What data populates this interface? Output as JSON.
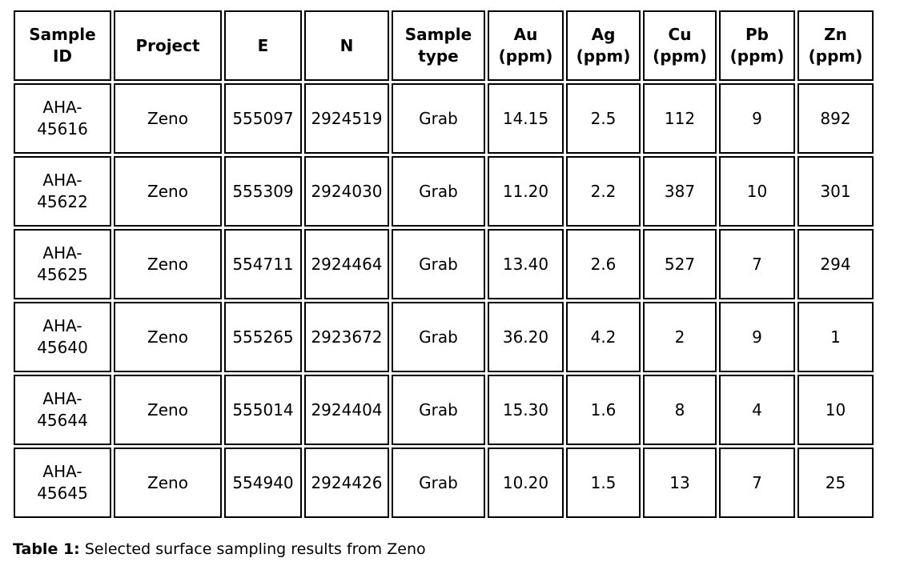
{
  "document": {
    "table": {
      "headers": [
        "Sample\nID",
        "Project",
        "E",
        "N",
        "Sample\ntype",
        "Au\n(ppm)",
        "Ag\n(ppm)",
        "Cu\n(ppm)",
        "Pb\n(ppm)",
        "Zn\n(ppm)"
      ],
      "rows": [
        [
          "AHA-\n45616",
          "Zeno",
          "555097",
          "2924519",
          "Grab",
          "14.15",
          "2.5",
          "112",
          "9",
          "892"
        ],
        [
          "AHA-\n45622",
          "Zeno",
          "555309",
          "2924030",
          "Grab",
          "11.20",
          "2.2",
          "387",
          "10",
          "301"
        ],
        [
          "AHA-\n45625",
          "Zeno",
          "554711",
          "2924464",
          "Grab",
          "13.40",
          "2.6",
          "527",
          "7",
          "294"
        ],
        [
          "AHA-\n45640",
          "Zeno",
          "555265",
          "2923672",
          "Grab",
          "36.20",
          "4.2",
          "2",
          "9",
          "1"
        ],
        [
          "AHA-\n45644",
          "Zeno",
          "555014",
          "2924404",
          "Grab",
          "15.30",
          "1.6",
          "8",
          "4",
          "10"
        ],
        [
          "AHA-\n45645",
          "Zeno",
          "554940",
          "2924426",
          "Grab",
          "10.20",
          "1.5",
          "13",
          "7",
          "25"
        ]
      ]
    },
    "caption": {
      "label": "Table 1:",
      "text": "Selected surface sampling results from Zeno"
    },
    "colors": {
      "text": "#000000",
      "border": "#000000",
      "background": "#ffffff"
    }
  }
}
